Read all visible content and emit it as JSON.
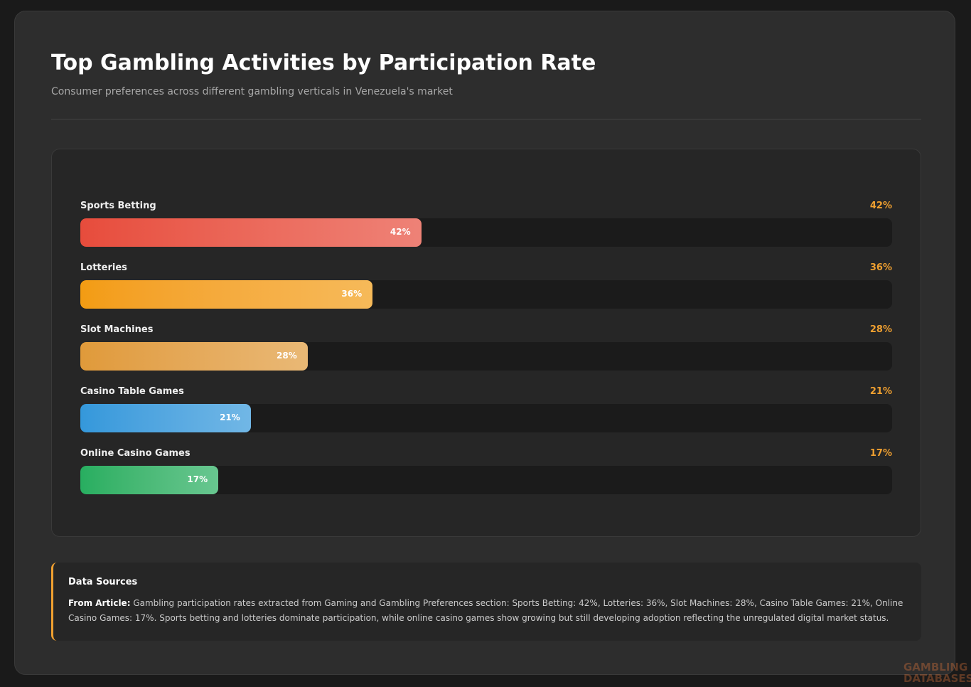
{
  "chart_data": {
    "type": "bar",
    "orientation": "horizontal",
    "title": "Top Gambling Activities by Participation Rate",
    "subtitle": "Consumer preferences across different gambling verticals in Venezuela's market",
    "categories": [
      "Sports Betting",
      "Lotteries",
      "Slot Machines",
      "Casino Table Games",
      "Online Casino Games"
    ],
    "values": [
      42,
      36,
      28,
      21,
      17
    ],
    "value_labels": [
      "42%",
      "36%",
      "28%",
      "21%",
      "17%"
    ],
    "colors": [
      "#e74c3c",
      "#f39c12",
      "#e09a3a",
      "#3498db",
      "#27ae60"
    ],
    "xlim": [
      0,
      100
    ]
  },
  "sources": {
    "title": "Data Sources",
    "label": "From Article:",
    "text": "Gambling participation rates extracted from Gaming and Gambling Preferences section: Sports Betting: 42%, Lotteries: 36%, Slot Machines: 28%, Casino Table Games: 21%, Online Casino Games: 17%. Sports betting and lotteries dominate participation, while online casino games show growing but still developing adoption reflecting the unregulated digital market status."
  },
  "watermark": [
    "GAMBLING",
    "DATABASES"
  ]
}
